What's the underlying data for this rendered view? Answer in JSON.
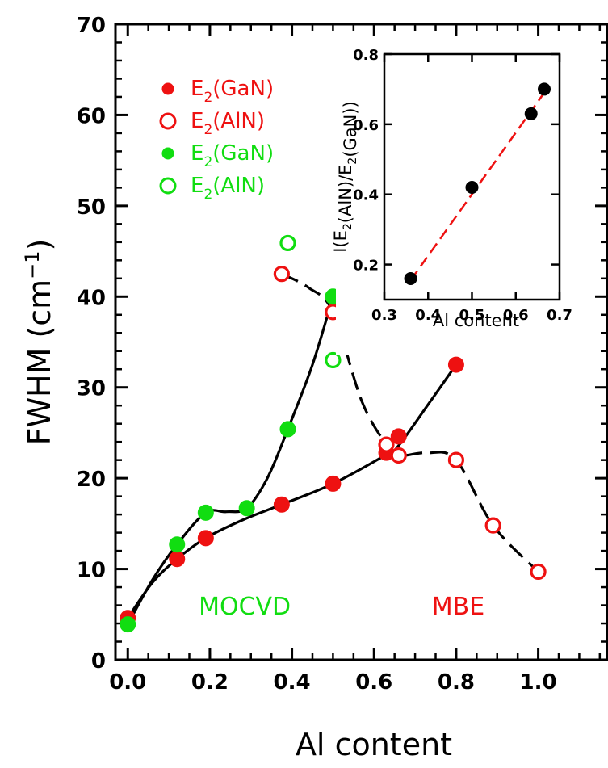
{
  "colors": {
    "red": "#ee1111",
    "green": "#11dd11",
    "black": "#000000"
  },
  "chart_data": [
    {
      "type": "scatter",
      "xlabel": "Al  content",
      "ylabel": "FWHM  (cm",
      "ylabel_sup": "−1",
      "ylabel_close": ")",
      "xlim": [
        -0.03,
        1.17
      ],
      "ylim": [
        0,
        70
      ],
      "xticks": [
        0.0,
        0.2,
        0.4,
        0.6,
        0.8,
        1.0
      ],
      "xtick_labels": [
        "0.0",
        "0.2",
        "0.4",
        "0.6",
        "0.8",
        "1.0"
      ],
      "yticks": [
        0,
        10,
        20,
        30,
        40,
        50,
        60,
        70
      ],
      "ytick_labels": [
        "0",
        "10",
        "20",
        "30",
        "40",
        "50",
        "60",
        "70"
      ],
      "legend": {
        "placement": "top-left",
        "entries": [
          {
            "main": "E",
            "sub": "2",
            "rest": "(GaN)",
            "color": "red",
            "marker": "filled"
          },
          {
            "main": "E",
            "sub": "2",
            "rest": "(AlN)",
            "color": "red",
            "marker": "open"
          },
          {
            "main": "E",
            "sub": "2",
            "rest": "(GaN)",
            "color": "green",
            "marker": "filled"
          },
          {
            "main": "E",
            "sub": "2",
            "rest": "(AlN)",
            "color": "green",
            "marker": "open"
          }
        ]
      },
      "annotations": [
        {
          "text": "MOCVD",
          "color": "green",
          "x": 0.285,
          "y": 5.0
        },
        {
          "text": "MBE",
          "color": "red",
          "x": 0.805,
          "y": 5.0
        }
      ],
      "series": [
        {
          "color": "red",
          "marker": "filled",
          "x": [
            0.0,
            0.12,
            0.19,
            0.375,
            0.5,
            0.63,
            0.66,
            0.8
          ],
          "y": [
            4.6,
            11.1,
            13.4,
            17.1,
            19.4,
            22.8,
            24.6,
            32.5
          ]
        },
        {
          "color": "red",
          "marker": "open",
          "x": [
            0.375,
            0.5,
            0.63,
            0.66,
            0.8,
            0.89,
            1.0
          ],
          "y": [
            42.5,
            38.3,
            23.7,
            22.5,
            22.0,
            14.8,
            9.7
          ]
        },
        {
          "color": "green",
          "marker": "filled",
          "x": [
            0.0,
            0.12,
            0.19,
            0.29,
            0.39,
            0.5
          ],
          "y": [
            3.9,
            12.7,
            16.2,
            16.7,
            25.4,
            40.0
          ]
        },
        {
          "color": "green",
          "marker": "open",
          "x": [
            0.39,
            0.5
          ],
          "y": [
            45.9,
            33.0
          ]
        }
      ],
      "curves": [
        {
          "style": "solid",
          "x": [
            0.0,
            0.06,
            0.12,
            0.19,
            0.28,
            0.375,
            0.5,
            0.63,
            0.66,
            0.73,
            0.8
          ],
          "y": [
            4.6,
            8.5,
            11.1,
            13.4,
            15.4,
            17.1,
            19.4,
            22.6,
            23.6,
            28.0,
            32.5
          ]
        },
        {
          "style": "solid",
          "x": [
            0.0,
            0.06,
            0.12,
            0.19,
            0.24,
            0.29,
            0.34,
            0.39,
            0.45,
            0.5
          ],
          "y": [
            3.9,
            8.8,
            12.7,
            16.2,
            16.3,
            16.7,
            20.0,
            25.4,
            32.5,
            40.0
          ]
        },
        {
          "style": "dashed",
          "x": [
            0.375,
            0.44,
            0.5,
            0.57,
            0.63,
            0.66,
            0.73,
            0.8,
            0.89,
            1.0
          ],
          "y": [
            42.5,
            41.0,
            38.3,
            28.5,
            23.7,
            22.5,
            22.8,
            22.0,
            14.8,
            9.7
          ]
        }
      ]
    },
    {
      "type": "scatter",
      "xlabel": "Al  content",
      "ylabel": "I(E2(AlN)/E2(GaN))",
      "ylabel_parts": [
        {
          "t": "I(E"
        },
        {
          "t": "2",
          "sub": true
        },
        {
          "t": "(AlN)/E"
        },
        {
          "t": "2",
          "sub": true
        },
        {
          "t": "(GaN))"
        }
      ],
      "xlim": [
        0.3,
        0.7
      ],
      "ylim": [
        0.1,
        0.8
      ],
      "xticks": [
        0.3,
        0.4,
        0.5,
        0.6,
        0.7
      ],
      "xtick_labels": [
        "0.3",
        "0.4",
        "0.5",
        "0.6",
        "0.7"
      ],
      "yticks": [
        0.2,
        0.4,
        0.6,
        0.8
      ],
      "ytick_labels": [
        "0.2",
        "0.4",
        "0.6",
        "0.8"
      ],
      "series": [
        {
          "color": "black",
          "marker": "filled",
          "x": [
            0.36,
            0.5,
            0.635,
            0.665
          ],
          "y": [
            0.16,
            0.42,
            0.63,
            0.7
          ]
        }
      ],
      "fit_line": {
        "color": "red",
        "style": "dashed",
        "x": [
          0.36,
          0.665
        ],
        "y": [
          0.155,
          0.69
        ]
      }
    }
  ]
}
